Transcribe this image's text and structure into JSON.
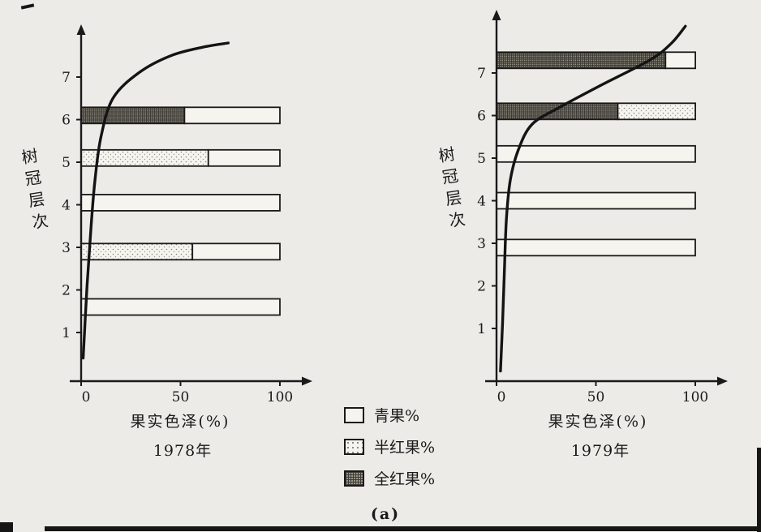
{
  "caption": "(a)",
  "colors": {
    "ink": "#1a1a1a",
    "paper": "#edebe7"
  },
  "legend": {
    "items": [
      {
        "label": "青果%",
        "fill": "plain"
      },
      {
        "label": "半红果%",
        "fill": "dots"
      },
      {
        "label": "全红果%",
        "fill": "hatch"
      }
    ]
  },
  "chart_data": [
    {
      "type": "bar",
      "orientation": "horizontal",
      "title": "1978年",
      "xlabel": "果实色泽(%)",
      "ylabel": "树冠层次",
      "xlim": [
        0,
        100
      ],
      "ylim": [
        0,
        8
      ],
      "x_ticks": [
        0,
        50,
        100
      ],
      "y_ticks": [
        1,
        2,
        3,
        4,
        5,
        6,
        7
      ],
      "bars": [
        {
          "layer": 6.1,
          "segments": [
            {
              "series": "全红果%",
              "value": 52
            },
            {
              "series": "青果%",
              "value": 48
            }
          ]
        },
        {
          "layer": 5.1,
          "segments": [
            {
              "series": "半红果%",
              "value": 64
            },
            {
              "series": "青果%",
              "value": 36
            }
          ]
        },
        {
          "layer": 4.05,
          "segments": [
            {
              "series": "青果%",
              "value": 100
            }
          ]
        },
        {
          "layer": 2.9,
          "segments": [
            {
              "series": "半红果%",
              "value": 56
            },
            {
              "series": "青果%",
              "value": 44
            }
          ]
        },
        {
          "layer": 1.6,
          "segments": [
            {
              "series": "青果%",
              "value": 100
            }
          ]
        }
      ],
      "curve": {
        "name": "ripening-curve",
        "points": [
          [
            1,
            0.4
          ],
          [
            3,
            2.1
          ],
          [
            5,
            3.5
          ],
          [
            7,
            4.6
          ],
          [
            10,
            5.6
          ],
          [
            16,
            6.5
          ],
          [
            29,
            7.1
          ],
          [
            45,
            7.5
          ],
          [
            61,
            7.7
          ],
          [
            74,
            7.8
          ]
        ]
      }
    },
    {
      "type": "bar",
      "orientation": "horizontal",
      "title": "1979年",
      "xlabel": "果实色泽(%)",
      "ylabel": "树冠层次",
      "xlim": [
        0,
        100
      ],
      "ylim": [
        0,
        8.5
      ],
      "x_ticks": [
        0,
        50,
        100
      ],
      "y_ticks": [
        1,
        2,
        3,
        4,
        5,
        6,
        7
      ],
      "bars": [
        {
          "layer": 7.3,
          "segments": [
            {
              "series": "全红果%",
              "value": 85
            },
            {
              "series": "青果%",
              "value": 15
            }
          ]
        },
        {
          "layer": 6.1,
          "segments": [
            {
              "series": "全红果%",
              "value": 61
            },
            {
              "series": "半红果%",
              "value": 39
            }
          ]
        },
        {
          "layer": 5.1,
          "segments": [
            {
              "series": "青果%",
              "value": 100
            }
          ]
        },
        {
          "layer": 4.0,
          "segments": [
            {
              "series": "青果%",
              "value": 100
            }
          ]
        },
        {
          "layer": 2.9,
          "segments": [
            {
              "series": "青果%",
              "value": 100
            }
          ]
        }
      ],
      "curve": {
        "name": "ripening-curve",
        "points": [
          [
            2,
            0.0
          ],
          [
            3,
            1.1
          ],
          [
            4,
            2.4
          ],
          [
            5,
            3.6
          ],
          [
            7,
            4.5
          ],
          [
            11,
            5.2
          ],
          [
            18,
            5.8
          ],
          [
            32,
            6.2
          ],
          [
            52,
            6.7
          ],
          [
            77,
            7.3
          ],
          [
            88,
            7.7
          ],
          [
            95,
            8.1
          ]
        ]
      }
    }
  ]
}
